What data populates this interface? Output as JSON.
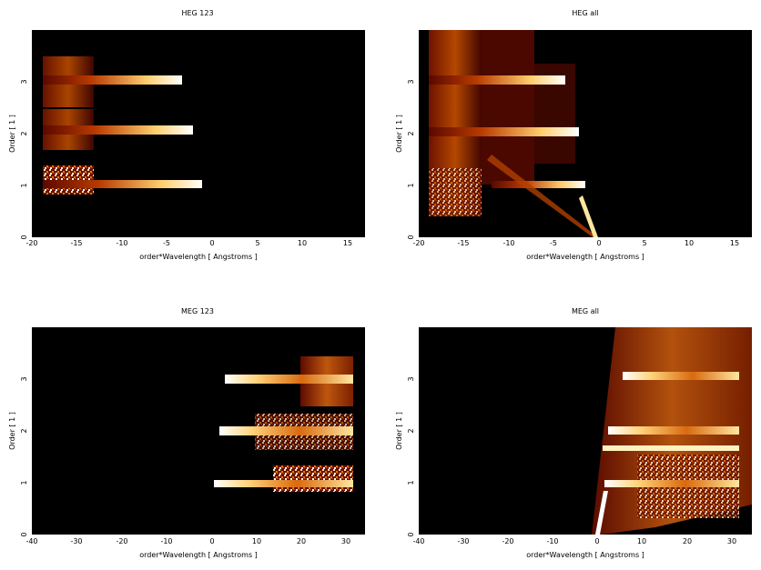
{
  "colors": {
    "background": "#000000",
    "heat_low": "#3a0000",
    "heat_mid": "#c84c00",
    "heat_high": "#ffe08a",
    "heat_peak": "#ffffff"
  },
  "chart_data": [
    {
      "type": "heatmap",
      "title": "HEG 123",
      "xlabel": "order*Wavelength [ Angstroms ]",
      "ylabel": "Order [ 1 ]",
      "xlim": [
        -20,
        17
      ],
      "ylim": [
        0,
        4
      ],
      "xticks": [
        "-20",
        "-15",
        "-10",
        "-5",
        "0",
        "5",
        "10",
        "15"
      ],
      "yticks": [
        "0",
        "1",
        "2",
        "3"
      ],
      "bands": [
        {
          "order": 1,
          "x_range": [
            -19,
            -1
          ],
          "peak_x": -1.5
        },
        {
          "order": 2,
          "x_range": [
            -19,
            -2.5
          ],
          "peak_x": -4
        },
        {
          "order": 3,
          "x_range": [
            -19,
            -3.5
          ],
          "peak_x": -5
        }
      ]
    },
    {
      "type": "heatmap",
      "title": "HEG all",
      "xlabel": "order*Wavelength [ Angstroms ]",
      "ylabel": "Order [ 1 ]",
      "xlim": [
        -20,
        17
      ],
      "ylim": [
        0,
        4
      ],
      "xticks": [
        "-20",
        "-15",
        "-10",
        "-5",
        "0",
        "5",
        "10",
        "15"
      ],
      "yticks": [
        "0",
        "1",
        "2",
        "3"
      ],
      "bands": [
        {
          "order": 1,
          "x_range": [
            -19,
            -1.5
          ],
          "peak_x": -2
        },
        {
          "order": 2,
          "x_range": [
            -19,
            -2
          ],
          "peak_x": -3
        },
        {
          "order": 3,
          "x_range": [
            -19,
            -3
          ],
          "peak_x": -6
        }
      ]
    },
    {
      "type": "heatmap",
      "title": "MEG 123",
      "xlabel": "order*Wavelength [ Angstroms ]",
      "ylabel": "Order [ 1 ]",
      "xlim": [
        -40,
        35
      ],
      "ylim": [
        0,
        4
      ],
      "xticks": [
        "-40",
        "-30",
        "-20",
        "-10",
        "0",
        "10",
        "20",
        "30"
      ],
      "yticks": [
        "0",
        "1",
        "2",
        "3"
      ],
      "bands": [
        {
          "order": 1,
          "x_range": [
            2,
            33
          ],
          "peak_x": 4
        },
        {
          "order": 2,
          "x_range": [
            3,
            33
          ],
          "peak_x": 6
        },
        {
          "order": 3,
          "x_range": [
            5,
            33
          ],
          "peak_x": 7
        }
      ]
    },
    {
      "type": "heatmap",
      "title": "MEG all",
      "xlabel": "order*Wavelength [ Angstroms ]",
      "ylabel": "Order [ 1 ]",
      "xlim": [
        -40,
        35
      ],
      "ylim": [
        0,
        4
      ],
      "xticks": [
        "-40",
        "-30",
        "-20",
        "-10",
        "0",
        "10",
        "20",
        "30"
      ],
      "yticks": [
        "0",
        "1",
        "2",
        "3"
      ],
      "bands": [
        {
          "order": 1,
          "x_range": [
            2,
            33
          ],
          "peak_x": 5
        },
        {
          "order": 2,
          "x_range": [
            2,
            33
          ],
          "peak_x": 8
        },
        {
          "order": 3,
          "x_range": [
            4,
            33
          ],
          "peak_x": 9
        }
      ]
    }
  ]
}
